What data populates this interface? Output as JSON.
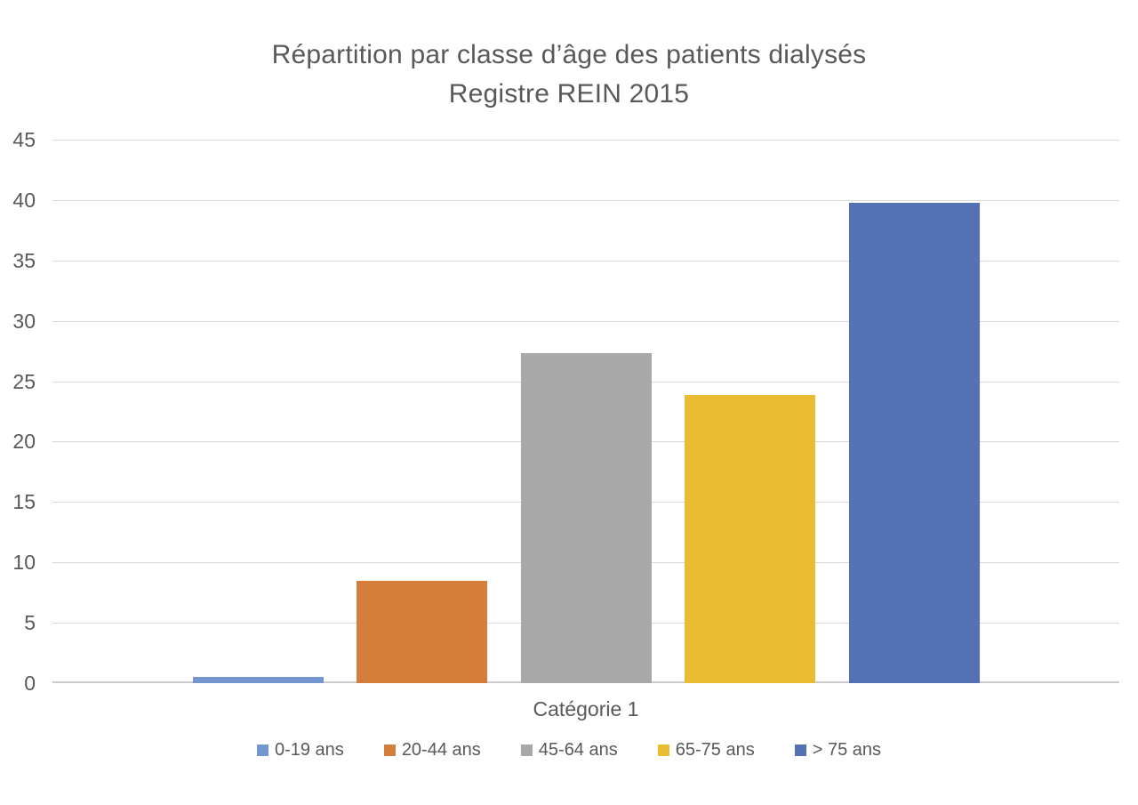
{
  "chart_data": {
    "type": "bar",
    "title": "Répartition par classe d’âge des patients dialysés Registre REIN 2015",
    "title_lines": [
      "Répartition par classe d’âge des patients dialysés",
      "Registre REIN 2015"
    ],
    "categories": [
      "Catégorie 1"
    ],
    "series": [
      {
        "name": "0-19 ans",
        "values": [
          0.5
        ],
        "color": "#7396CE"
      },
      {
        "name": "20-44 ans",
        "values": [
          8.5
        ],
        "color": "#D57E3B"
      },
      {
        "name": "45-64 ans",
        "values": [
          27.3
        ],
        "color": "#A8A8A8"
      },
      {
        "name": "65-75 ans",
        "values": [
          23.9
        ],
        "color": "#E9BC31"
      },
      {
        "name": "> 75 ans",
        "values": [
          39.8
        ],
        "color": "#5571B5"
      }
    ],
    "xlabel": "",
    "ylabel": "",
    "ylim": [
      0,
      45
    ],
    "ytick_step": 5,
    "grid": true,
    "legend_position": "bottom"
  },
  "colors": {
    "title_text": "#595959",
    "axis_text": "#595959",
    "gridline": "#D9D9D9",
    "axis_line": "#CBCBCB",
    "background": "#FFFFFF"
  }
}
